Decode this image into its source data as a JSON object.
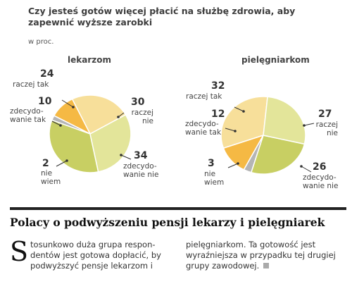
{
  "question": "Czy jesteś gotów więcej płacić na służbę zdrowia, aby zapewnić wyższe zarobki",
  "unit": "w proc.",
  "colors": {
    "raczej_tak": "#f7df9a",
    "zdecydowanie_tak": "#f5b944",
    "nie_wiem": "#b5b5b5",
    "zdecydowanie_nie": "#c8cf63",
    "raczej_nie": "#e3e59a",
    "outline": "#ffffff"
  },
  "chart_data": [
    {
      "type": "pie",
      "title": "lekarzom",
      "categories": [
        "raczej tak",
        "zdecydowanie tak",
        "nie wiem",
        "zdecydowanie nie",
        "raczej nie"
      ],
      "values": [
        24,
        10,
        2,
        34,
        30
      ],
      "labels": [
        {
          "value": "24",
          "text": "raczej tak"
        },
        {
          "value": "10",
          "text": "zdecydo-\nwanie tak"
        },
        {
          "value": "2",
          "text": "nie\nwiem"
        },
        {
          "value": "34",
          "text": "zdecydo-\nwanie nie"
        },
        {
          "value": "30",
          "text": "raczej\nnie"
        }
      ]
    },
    {
      "type": "pie",
      "title": "pielęgniarkom",
      "categories": [
        "raczej tak",
        "zdecydowanie tak",
        "nie wiem",
        "zdecydowanie nie",
        "raczej nie"
      ],
      "values": [
        32,
        12,
        3,
        26,
        27
      ],
      "labels": [
        {
          "value": "32",
          "text": "raczej tak"
        },
        {
          "value": "12",
          "text": "zdecydo-\nwanie tak"
        },
        {
          "value": "3",
          "text": "nie\nwiem"
        },
        {
          "value": "26",
          "text": "zdecydo-\nwanie nie"
        },
        {
          "value": "27",
          "text": "raczej\nnie"
        }
      ]
    }
  ],
  "article": {
    "headline": "Polacy o podwyższeniu pensji lekarzy i pielęgniarek",
    "dropcap": "S",
    "col1": "tosunkowo duża grupa respon-dentów jest gotowa dopłacić, by podwyższyć pensje lekarzom i",
    "col2": "pielęgniarkom. Ta gotowość jest wyraźniejsza w przypadku tej drugiej grupy zawodowej."
  }
}
